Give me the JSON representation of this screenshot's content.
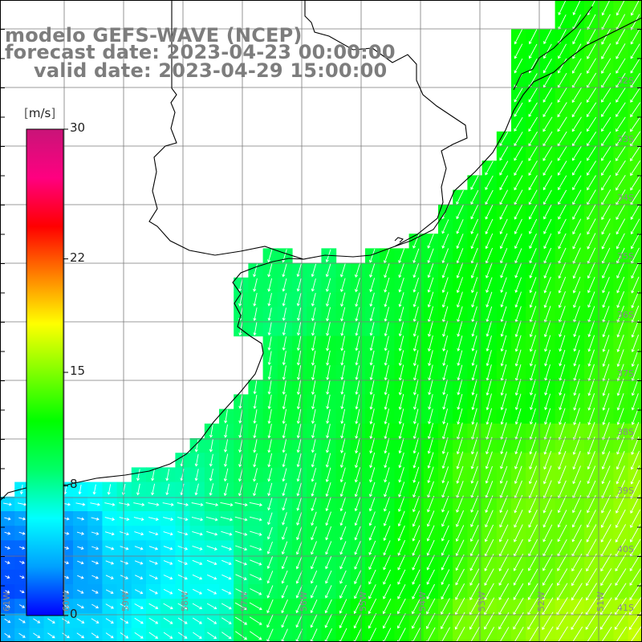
{
  "title": {
    "model": "modelo GEFS-WAVE (NCEP)",
    "forecast": "forecast date: 2023-04-23 00:00:00",
    "valid": "valid date: 2023-04-29 15:00:00"
  },
  "colorbar": {
    "unit": "m/s",
    "min": 0,
    "max": 30,
    "ticks": [
      {
        "label": "30",
        "value": 30
      },
      {
        "label": "22",
        "value": 22
      },
      {
        "label": "15",
        "value": 15
      },
      {
        "label": "8",
        "value": 8
      },
      {
        "label": "0",
        "value": 0
      }
    ],
    "stops": [
      "#0000ff",
      "#00a0ff",
      "#00ffff",
      "#00ff66",
      "#00ff00",
      "#80ff00",
      "#ffff00",
      "#ff8000",
      "#ff0000",
      "#ff0080",
      "#c81478"
    ]
  },
  "lat_labels": [
    "32S",
    "33S",
    "34S",
    "35S",
    "36S",
    "37S",
    "38S",
    "39S",
    "40S",
    "41S"
  ],
  "lon_labels": [
    "61W",
    "60W",
    "59W",
    "58W",
    "57W",
    "56W",
    "55W",
    "54W",
    "53W",
    "52W",
    "51W"
  ],
  "colors": {
    "land": "#ffffff",
    "coast": "#000000",
    "grid": "#7a7a7a",
    "arrows": "#ffffff",
    "title": "#7d7d7d"
  }
}
